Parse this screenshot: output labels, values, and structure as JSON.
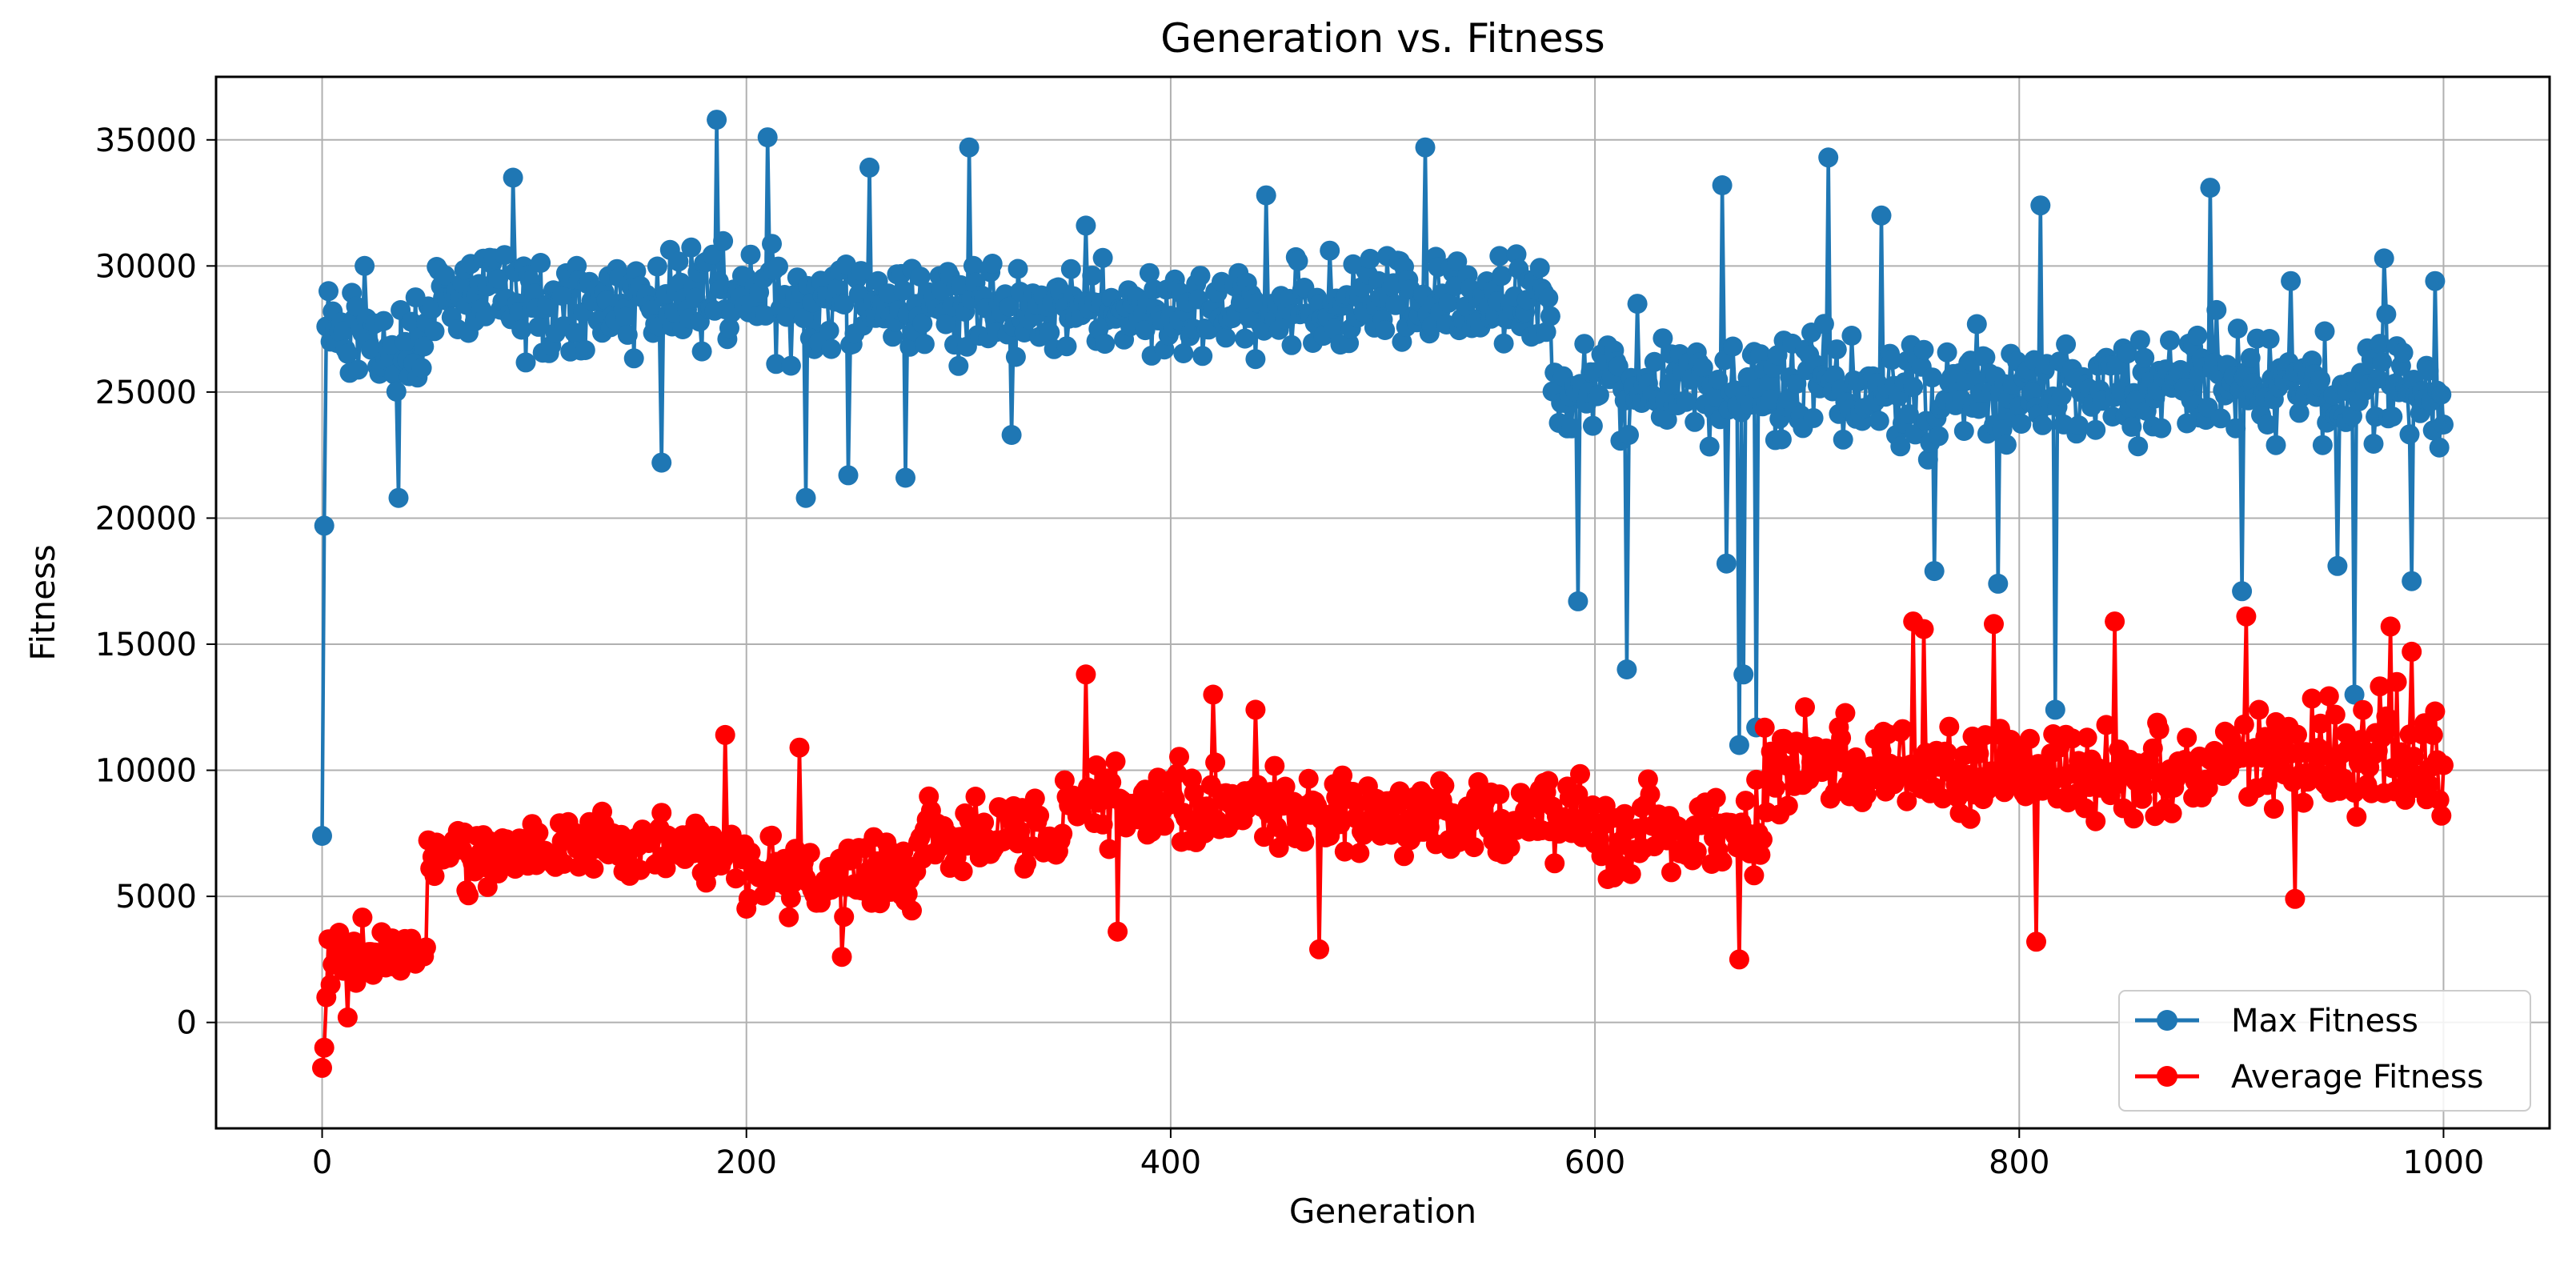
{
  "chart_data": {
    "type": "line",
    "title": "Generation vs. Fitness",
    "xlabel": "Generation",
    "ylabel": "Fitness",
    "xlim": [
      -50,
      1050
    ],
    "ylim": [
      -4200,
      37500
    ],
    "xticks": [
      0,
      200,
      400,
      600,
      800,
      1000
    ],
    "yticks": [
      0,
      5000,
      10000,
      15000,
      20000,
      25000,
      30000,
      35000
    ],
    "grid": true,
    "legend_position": "lower-right",
    "series": [
      {
        "name": "Max Fitness",
        "color": "#1f77b4",
        "marker": "circle",
        "generator": {
          "initial": [
            7400,
            19700,
            27600,
            29000,
            27000,
            28200
          ],
          "segments": [
            {
              "until": 50,
              "base": 27000,
              "noise": 2500
            },
            {
              "until": 300,
              "base": 28600,
              "noise": 2600
            },
            {
              "until": 450,
              "base": 28200,
              "noise": 2200
            },
            {
              "until": 580,
              "base": 28500,
              "noise": 2200
            },
            {
              "until": 650,
              "base": 25000,
              "noise": 2500
            },
            {
              "until": 1001,
              "base": 25200,
              "noise": 2800
            }
          ],
          "points": [
            [
              20,
              30000
            ],
            [
              36,
              20800
            ],
            [
              90,
              33500
            ],
            [
              160,
              22200
            ],
            [
              186,
              35800
            ],
            [
              210,
              35100
            ],
            [
              228,
              20800
            ],
            [
              248,
              21700
            ],
            [
              258,
              33900
            ],
            [
              275,
              21600
            ],
            [
              305,
              34700
            ],
            [
              325,
              23300
            ],
            [
              360,
              31600
            ],
            [
              445,
              32800
            ],
            [
              520,
              34700
            ],
            [
              592,
              16700
            ],
            [
              615,
              14000
            ],
            [
              620,
              28500
            ],
            [
              660,
              33200
            ],
            [
              662,
              18200
            ],
            [
              668,
              11000
            ],
            [
              670,
              13800
            ],
            [
              676,
              11700
            ],
            [
              710,
              34300
            ],
            [
              735,
              32000
            ],
            [
              760,
              17900
            ],
            [
              790,
              17400
            ],
            [
              810,
              32400
            ],
            [
              817,
              12400
            ],
            [
              890,
              33100
            ],
            [
              905,
              17100
            ],
            [
              928,
              29400
            ],
            [
              950,
              18100
            ],
            [
              958,
              13000
            ],
            [
              972,
              30300
            ],
            [
              985,
              17500
            ],
            [
              996,
              29400
            ],
            [
              999,
              24900
            ]
          ]
        }
      },
      {
        "name": "Average Fitness",
        "color": "#ff0000",
        "marker": "circle",
        "generator": {
          "initial": [
            -1800,
            -1000,
            1000,
            3300,
            1500,
            2300
          ],
          "segments": [
            {
              "until": 50,
              "base": 2800,
              "noise": 1400
            },
            {
              "until": 100,
              "base": 6600,
              "noise": 1600
            },
            {
              "until": 200,
              "base": 6800,
              "noise": 1700
            },
            {
              "until": 280,
              "base": 5800,
              "noise": 1800
            },
            {
              "until": 350,
              "base": 7400,
              "noise": 1900
            },
            {
              "until": 450,
              "base": 8600,
              "noise": 2000
            },
            {
              "until": 600,
              "base": 8300,
              "noise": 2000
            },
            {
              "until": 680,
              "base": 7600,
              "noise": 2200
            },
            {
              "until": 800,
              "base": 10200,
              "noise": 2400
            },
            {
              "until": 900,
              "base": 10000,
              "noise": 2300
            },
            {
              "until": 1001,
              "base": 10800,
              "noise": 2600
            }
          ],
          "points": [
            [
              12,
              200
            ],
            [
              190,
              11400
            ],
            [
              225,
              10900
            ],
            [
              245,
              2600
            ],
            [
              360,
              13800
            ],
            [
              375,
              3600
            ],
            [
              420,
              13000
            ],
            [
              440,
              12400
            ],
            [
              470,
              2900
            ],
            [
              668,
              2500
            ],
            [
              750,
              15900
            ],
            [
              755,
              15600
            ],
            [
              788,
              15800
            ],
            [
              808,
              3200
            ],
            [
              845,
              15900
            ],
            [
              907,
              16100
            ],
            [
              930,
              4900
            ],
            [
              975,
              15700
            ],
            [
              985,
              14700
            ],
            [
              997,
              10400
            ],
            [
              999,
              8200
            ]
          ]
        }
      }
    ]
  }
}
